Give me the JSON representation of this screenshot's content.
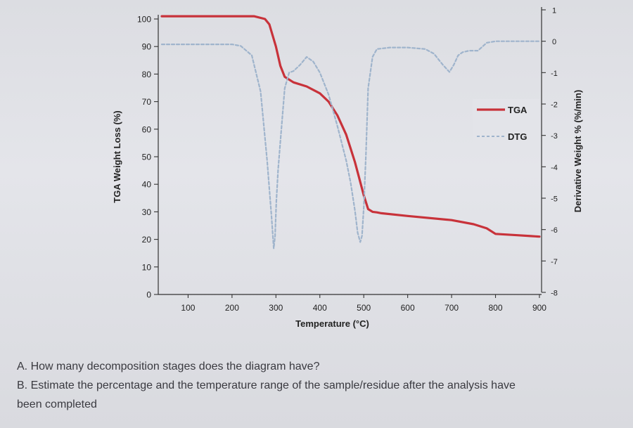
{
  "chart_data": {
    "type": "line",
    "title": "",
    "xlabel": "Temperature (°C)",
    "ylabel": "TGA Weight Loss (%)",
    "y2label": "Derivative Weight % (%/min)",
    "xlim": [
      0,
      900
    ],
    "ylim": [
      0,
      100
    ],
    "y2lim": [
      -8,
      1
    ],
    "x_ticks": [
      100,
      200,
      300,
      400,
      500,
      600,
      700,
      800,
      900
    ],
    "y_ticks": [
      0,
      10,
      20,
      30,
      40,
      50,
      60,
      70,
      80,
      90,
      100
    ],
    "y2_ticks": [
      -8,
      -7,
      -6,
      -5,
      -4,
      -3,
      -2,
      -1,
      0,
      1
    ],
    "grid": false,
    "legend_position": "right",
    "series": [
      {
        "name": "TGA",
        "axis": "left",
        "color": "#c8323a",
        "style": "solid",
        "x": [
          40,
          100,
          200,
          250,
          275,
          285,
          300,
          310,
          320,
          340,
          370,
          400,
          420,
          440,
          460,
          470,
          480,
          490,
          500,
          510,
          520,
          530,
          540,
          600,
          700,
          750,
          780,
          800,
          850,
          880,
          900
        ],
        "y": [
          101,
          101,
          101,
          101,
          100,
          98,
          90,
          83,
          79,
          77,
          75.5,
          73,
          70,
          65,
          58,
          53,
          48,
          42,
          36,
          31,
          30,
          29.8,
          29.5,
          28.5,
          27,
          25.5,
          24,
          22,
          21.5,
          21.2,
          21
        ]
      },
      {
        "name": "DTG",
        "axis": "right",
        "color": "#9fb4cc",
        "style": "dashed",
        "x": [
          40,
          100,
          200,
          220,
          245,
          265,
          280,
          290,
          295,
          298,
          301,
          305,
          310,
          320,
          330,
          340,
          355,
          370,
          385,
          400,
          420,
          440,
          460,
          470,
          480,
          486,
          492,
          496,
          500,
          505,
          510,
          520,
          530,
          560,
          600,
          640,
          660,
          680,
          695,
          705,
          715,
          725,
          740,
          760,
          780,
          800,
          850,
          880,
          900
        ],
        "y": [
          -0.1,
          -0.1,
          -0.1,
          -0.15,
          -0.45,
          -1.6,
          -3.8,
          -5.6,
          -6.6,
          -6.2,
          -5.1,
          -4.1,
          -3.2,
          -1.5,
          -1.0,
          -0.95,
          -0.75,
          -0.5,
          -0.65,
          -1.0,
          -1.7,
          -2.7,
          -3.8,
          -4.5,
          -5.4,
          -6.1,
          -6.4,
          -6.2,
          -5.3,
          -3.6,
          -1.5,
          -0.5,
          -0.25,
          -0.2,
          -0.2,
          -0.25,
          -0.4,
          -0.75,
          -0.98,
          -0.75,
          -0.45,
          -0.35,
          -0.3,
          -0.3,
          -0.05,
          0.0,
          0.0,
          0.0,
          0.0
        ]
      }
    ]
  },
  "questions": {
    "q_a": "A. How many decomposition stages does the diagram have?",
    "q_b": "B. Estimate the percentage and the temperature range of the sample/residue after the analysis have",
    "q_b_cont": "been completed"
  }
}
